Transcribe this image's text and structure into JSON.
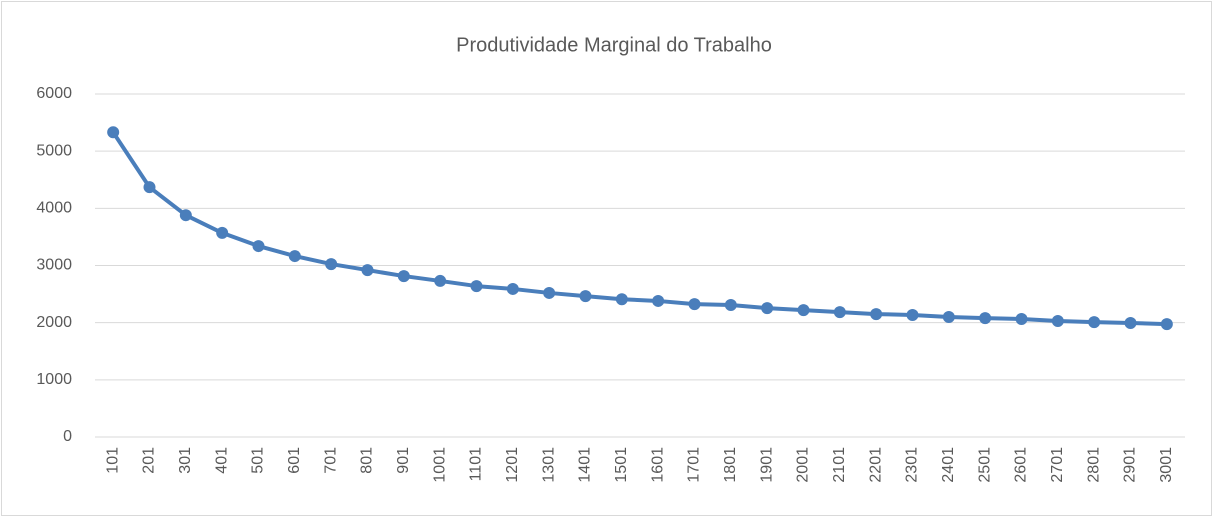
{
  "chart_data": {
    "type": "line",
    "title": "Produtividade Marginal do Trabalho",
    "categories": [
      "101",
      "201",
      "301",
      "401",
      "501",
      "601",
      "701",
      "801",
      "901",
      "1001",
      "1101",
      "1201",
      "1301",
      "1401",
      "1501",
      "1601",
      "1701",
      "1801",
      "1901",
      "2001",
      "2101",
      "2201",
      "2301",
      "2401",
      "2501",
      "2601",
      "2701",
      "2801",
      "2901",
      "3001"
    ],
    "values": [
      5330,
      4370,
      3880,
      3570,
      3340,
      3165,
      3025,
      2920,
      2815,
      2730,
      2640,
      2590,
      2520,
      2465,
      2410,
      2380,
      2325,
      2310,
      2255,
      2220,
      2185,
      2150,
      2135,
      2100,
      2080,
      2065,
      2030,
      2010,
      1995,
      1975
    ],
    "color": "#4a7ebb",
    "markers": true,
    "ylim": [
      0,
      6000
    ],
    "yticks": [
      0,
      1000,
      2000,
      3000,
      4000,
      5000,
      6000
    ],
    "grid": true
  }
}
